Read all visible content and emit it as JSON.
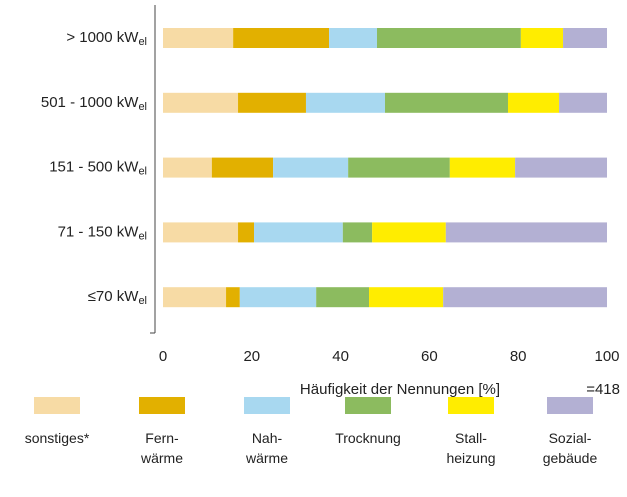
{
  "chart_data": {
    "type": "stacked_bar_horizontal",
    "categories": [
      "> 1000 kW",
      "501 - 1000 kW",
      "151 - 500 kW",
      "71 - 150 kW",
      "≤70 kW"
    ],
    "category_unit_subscript": "el",
    "series": [
      {
        "name": "sonstiges*",
        "color": "#f7dba5",
        "values": [
          15.8,
          16.9,
          11.0,
          16.9,
          14.2
        ]
      },
      {
        "name": "Fern-\nwärme",
        "color": "#e2b000",
        "values": [
          21.6,
          15.3,
          13.8,
          3.6,
          3.1
        ]
      },
      {
        "name": "Nah-\nwärme",
        "color": "#a8d8f0",
        "values": [
          10.8,
          17.8,
          16.9,
          20.0,
          17.2
        ]
      },
      {
        "name": "Trocknung",
        "color": "#8cbb5f",
        "values": [
          32.4,
          27.7,
          22.9,
          6.6,
          11.9
        ]
      },
      {
        "name": "Stall-\nheizung",
        "color": "#ffed00",
        "values": [
          9.5,
          11.5,
          14.7,
          16.6,
          16.7
        ]
      },
      {
        "name": "Sozial-\ngebäude",
        "color": "#b3b0d3",
        "values": [
          9.9,
          10.8,
          20.7,
          36.3,
          36.9
        ]
      }
    ],
    "xlabel": "Häufigkeit der Nennungen [%]",
    "annotation": "=418",
    "xlim": [
      0,
      100
    ],
    "xticks": [
      0,
      20,
      40,
      60,
      80,
      100
    ]
  }
}
